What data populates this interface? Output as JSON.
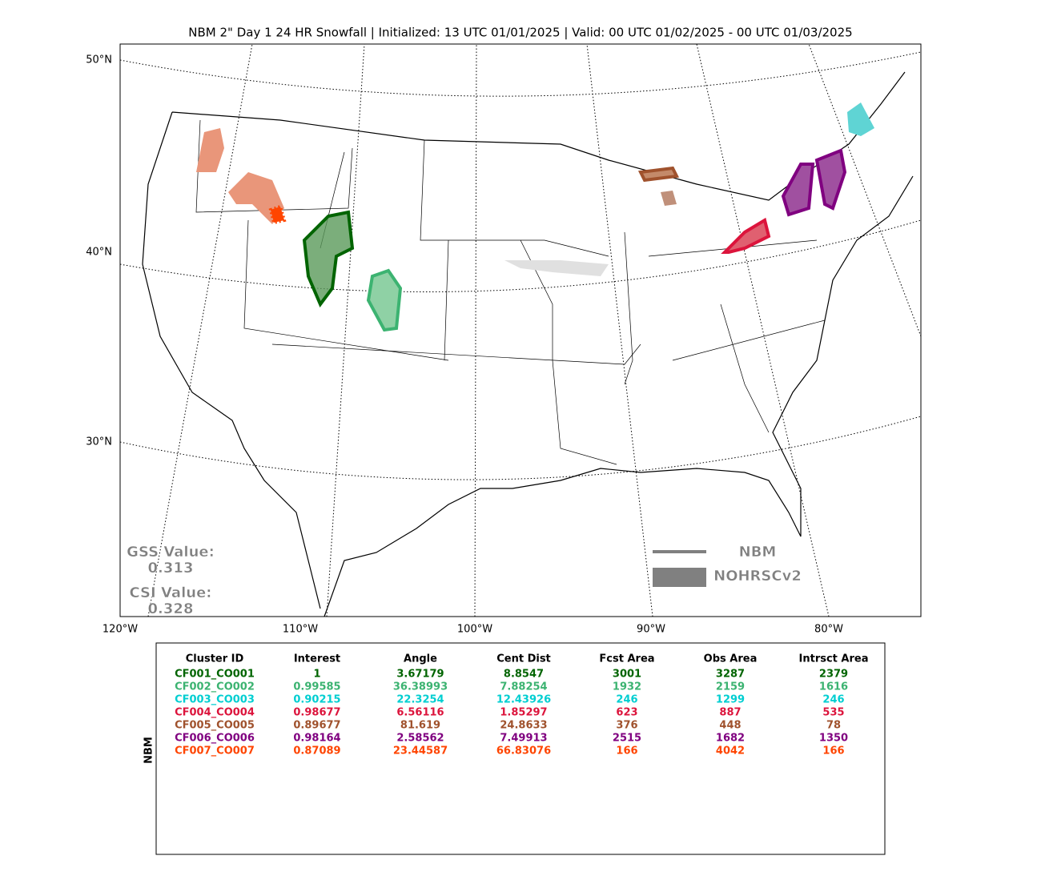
{
  "title": "NBM 2\" Day 1 24 HR Snowfall | Initialized: 13 UTC 01/01/2025 | Valid: 00 UTC 01/02/2025 - 00 UTC 01/03/2025",
  "map": {
    "lat_labels": [
      "50°N",
      "40°N",
      "30°N"
    ],
    "lon_labels": [
      "120°W",
      "110°W",
      "100°W",
      "90°W",
      "80°W"
    ],
    "legend": [
      {
        "label": "NBM",
        "color": "#808080"
      },
      {
        "label": "NOHRSCv2",
        "color": "#808080"
      }
    ],
    "gss_label": "GSS Value:",
    "gss_value": 0.313,
    "csi_label": "CSI Value:",
    "csi_value": 0.328
  },
  "table": {
    "side_label": "NBM",
    "columns": [
      "Cluster ID",
      "Interest",
      "Angle",
      "Cent Dist",
      "Fcst Area",
      "Obs Area",
      "Intrsct Area"
    ],
    "rows": [
      {
        "color": "#006400",
        "cells": [
          "CF001_CO001",
          1,
          3.67179,
          8.8547,
          3001,
          3287,
          2379
        ]
      },
      {
        "color": "#3cb371",
        "cells": [
          "CF002_CO002",
          0.99585,
          36.38993,
          7.88254,
          1932,
          2159,
          1616
        ]
      },
      {
        "color": "#00ced1",
        "cells": [
          "CF003_CO003",
          0.90215,
          22.3254,
          12.43926,
          246,
          1299,
          246
        ]
      },
      {
        "color": "#dc143c",
        "cells": [
          "CF004_CO004",
          0.98677,
          6.56116,
          1.85297,
          623,
          887,
          535
        ]
      },
      {
        "color": "#a0522d",
        "cells": [
          "CF005_CO005",
          0.89677,
          81.619,
          24.8633,
          376,
          448,
          78
        ]
      },
      {
        "color": "#800080",
        "cells": [
          "CF006_CO006",
          0.98164,
          2.58562,
          7.49913,
          2515,
          1682,
          1350
        ]
      },
      {
        "color": "#ff4500",
        "cells": [
          "CF007_CO007",
          0.87089,
          23.44587,
          66.83076,
          166,
          4042,
          166
        ]
      }
    ]
  }
}
